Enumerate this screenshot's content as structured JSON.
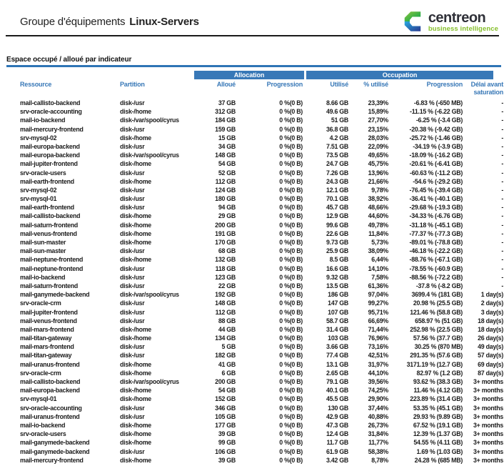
{
  "header": {
    "title_prefix": "Groupe d'équipements",
    "group_name": "Linux-Servers",
    "logo": {
      "brand": "centreon",
      "tagline": "business intelligence"
    }
  },
  "section": {
    "title": "Espace occupé / alloué par indicateur"
  },
  "colors": {
    "accent_blue": "#3878b7",
    "section_rule_blue": "#2e74b5",
    "logo_green": "#86bf2c",
    "logo_dark": "#2f3038",
    "logo_mark_green_light": "#8dc63f",
    "logo_mark_green_dark": "#00a14b",
    "logo_mark_blue_light": "#27aae1",
    "logo_mark_blue_dark": "#2b3990"
  },
  "table": {
    "groups": {
      "allocation": "Allocation",
      "occupation": "Occupation"
    },
    "columns": [
      "Ressource",
      "Partition",
      "Alloué",
      "Progression",
      "Utilisé",
      "% utilisé",
      "Progression",
      "Délai avant saturation"
    ],
    "rows": [
      [
        "mail-callisto-backend",
        "disk-/usr",
        "37 GB",
        "0 %(0 B)",
        "8.66 GB",
        "23,39%",
        "-6.83 % (-650 MB)",
        "-"
      ],
      [
        "srv-oracle-accounting",
        "disk-/home",
        "312 GB",
        "0 %(0 B)",
        "49.6 GB",
        "15,89%",
        "-11.15 % (-6.22 GB)",
        "-"
      ],
      [
        "mail-io-backend",
        "disk-/var/spool/cyrus",
        "184 GB",
        "0 %(0 B)",
        "51 GB",
        "27,70%",
        "-6.25 % (-3.4 GB)",
        "-"
      ],
      [
        "mail-mercury-frontend",
        "disk-/usr",
        "159 GB",
        "0 %(0 B)",
        "36.8 GB",
        "23,15%",
        "-20.38 % (-9.42 GB)",
        "-"
      ],
      [
        "srv-mysql-02",
        "disk-/home",
        "15 GB",
        "0 %(0 B)",
        "4.2 GB",
        "28,03%",
        "-25.72 % (-1.46 GB)",
        "-"
      ],
      [
        "mail-europa-backend",
        "disk-/usr",
        "34 GB",
        "0 %(0 B)",
        "7.51 GB",
        "22,09%",
        "-34.19 % (-3.9 GB)",
        "-"
      ],
      [
        "mail-europa-backend",
        "disk-/var/spool/cyrus",
        "148 GB",
        "0 %(0 B)",
        "73.5 GB",
        "49,65%",
        "-18.09 % (-16.2 GB)",
        "-"
      ],
      [
        "mail-jupiter-frontend",
        "disk-/home",
        "54 GB",
        "0 %(0 B)",
        "24.7 GB",
        "45,75%",
        "-20.61 % (-6.41 GB)",
        "-"
      ],
      [
        "srv-oracle-users",
        "disk-/usr",
        "52 GB",
        "0 %(0 B)",
        "7.26 GB",
        "13,96%",
        "-60.63 % (-11.2 GB)",
        "-"
      ],
      [
        "mail-earth-frontend",
        "disk-/home",
        "112 GB",
        "0 %(0 B)",
        "24.3 GB",
        "21,66%",
        "-54.6 % (-29.2 GB)",
        "-"
      ],
      [
        "srv-mysql-02",
        "disk-/usr",
        "124 GB",
        "0 %(0 B)",
        "12.1 GB",
        "9,78%",
        "-76.45 % (-39.4 GB)",
        "-"
      ],
      [
        "srv-mysql-01",
        "disk-/usr",
        "180 GB",
        "0 %(0 B)",
        "70.1 GB",
        "38,92%",
        "-36.41 % (-40.1 GB)",
        "-"
      ],
      [
        "mail-earth-frontend",
        "disk-/usr",
        "94 GB",
        "0 %(0 B)",
        "45.7 GB",
        "48,66%",
        "-29.68 % (-19.3 GB)",
        "-"
      ],
      [
        "mail-callisto-backend",
        "disk-/home",
        "29 GB",
        "0 %(0 B)",
        "12.9 GB",
        "44,60%",
        "-34.33 % (-6.76 GB)",
        "-"
      ],
      [
        "mail-saturn-frontend",
        "disk-/home",
        "200 GB",
        "0 %(0 B)",
        "99.6 GB",
        "49,78%",
        "-31.18 % (-45.1 GB)",
        "-"
      ],
      [
        "mail-venus-frontend",
        "disk-/home",
        "191 GB",
        "0 %(0 B)",
        "22.6 GB",
        "11,84%",
        "-77.37 % (-77.3 GB)",
        "-"
      ],
      [
        "mail-sun-master",
        "disk-/home",
        "170 GB",
        "0 %(0 B)",
        "9.73 GB",
        "5,73%",
        "-89.01 % (-78.8 GB)",
        "-"
      ],
      [
        "mail-sun-master",
        "disk-/usr",
        "68 GB",
        "0 %(0 B)",
        "25.9 GB",
        "38,09%",
        "-46.18 % (-22.2 GB)",
        "-"
      ],
      [
        "mail-neptune-frontend",
        "disk-/home",
        "132 GB",
        "0 %(0 B)",
        "8.5 GB",
        "6,44%",
        "-88.76 % (-67.1 GB)",
        "-"
      ],
      [
        "mail-neptune-frontend",
        "disk-/usr",
        "118 GB",
        "0 %(0 B)",
        "16.6 GB",
        "14,10%",
        "-78.55 % (-60.9 GB)",
        "-"
      ],
      [
        "mail-io-backend",
        "disk-/usr",
        "123 GB",
        "0 %(0 B)",
        "9.32 GB",
        "7,58%",
        "-88.56 % (-72.2 GB)",
        "-"
      ],
      [
        "mail-saturn-frontend",
        "disk-/usr",
        "22 GB",
        "0 %(0 B)",
        "13.5 GB",
        "61,36%",
        "-37.8 % (-8.2 GB)",
        "-"
      ],
      [
        "mail-ganymede-backend",
        "disk-/var/spool/cyrus",
        "192 GB",
        "0 %(0 B)",
        "186 GB",
        "97,04%",
        "3699.4 % (181 GB)",
        "1 day(s)"
      ],
      [
        "srv-oracle-crm",
        "disk-/usr",
        "148 GB",
        "0 %(0 B)",
        "147 GB",
        "99,27%",
        "20.98 % (25.5 GB)",
        "2 day(s)"
      ],
      [
        "mail-jupiter-frontend",
        "disk-/usr",
        "112 GB",
        "0 %(0 B)",
        "107 GB",
        "95,71%",
        "121.46 % (58.8 GB)",
        "3 day(s)"
      ],
      [
        "mail-venus-frontend",
        "disk-/usr",
        "88 GB",
        "0 %(0 B)",
        "58.7 GB",
        "66,69%",
        "658.97 % (51 GB)",
        "18 day(s)"
      ],
      [
        "mail-mars-frontend",
        "disk-/home",
        "44 GB",
        "0 %(0 B)",
        "31.4 GB",
        "71,44%",
        "252.98 % (22.5 GB)",
        "18 day(s)"
      ],
      [
        "mail-titan-gateway",
        "disk-/home",
        "134 GB",
        "0 %(0 B)",
        "103 GB",
        "76,96%",
        "57.56 % (37.7 GB)",
        "26 day(s)"
      ],
      [
        "mail-mars-frontend",
        "disk-/usr",
        "5 GB",
        "0 %(0 B)",
        "3.66 GB",
        "73,16%",
        "30.25 % (870 MB)",
        "49 day(s)"
      ],
      [
        "mail-titan-gateway",
        "disk-/usr",
        "182 GB",
        "0 %(0 B)",
        "77.4 GB",
        "42,51%",
        "291.35 % (57.6 GB)",
        "57 day(s)"
      ],
      [
        "mail-uranus-frontend",
        "disk-/home",
        "41 GB",
        "0 %(0 B)",
        "13.1 GB",
        "31,97%",
        "3171.19 % (12.7 GB)",
        "69 day(s)"
      ],
      [
        "srv-oracle-crm",
        "disk-/home",
        "6 GB",
        "0 %(0 B)",
        "2.65 GB",
        "44,10%",
        "82.97 % (1.2 GB)",
        "87 day(s)"
      ],
      [
        "mail-callisto-backend",
        "disk-/var/spool/cyrus",
        "200 GB",
        "0 %(0 B)",
        "79.1 GB",
        "39,56%",
        "93.62 % (38.3 GB)",
        "3+ months"
      ],
      [
        "mail-europa-backend",
        "disk-/home",
        "54 GB",
        "0 %(0 B)",
        "40.1 GB",
        "74,25%",
        "11.46 % (4.12 GB)",
        "3+ months"
      ],
      [
        "srv-mysql-01",
        "disk-/home",
        "152 GB",
        "0 %(0 B)",
        "45.5 GB",
        "29,90%",
        "223.89 % (31.4 GB)",
        "3+ months"
      ],
      [
        "srv-oracle-accounting",
        "disk-/usr",
        "346 GB",
        "0 %(0 B)",
        "130 GB",
        "37,44%",
        "53.35 % (45.1 GB)",
        "3+ months"
      ],
      [
        "mail-uranus-frontend",
        "disk-/usr",
        "105 GB",
        "0 %(0 B)",
        "42.9 GB",
        "40,88%",
        "29.93 % (9.89 GB)",
        "3+ months"
      ],
      [
        "mail-io-backend",
        "disk-/home",
        "177 GB",
        "0 %(0 B)",
        "47.3 GB",
        "26,73%",
        "67.52 % (19.1 GB)",
        "3+ months"
      ],
      [
        "srv-oracle-users",
        "disk-/home",
        "39 GB",
        "0 %(0 B)",
        "12.4 GB",
        "31,84%",
        "12.39 % (1.37 GB)",
        "3+ months"
      ],
      [
        "mail-ganymede-backend",
        "disk-/home",
        "99 GB",
        "0 %(0 B)",
        "11.7 GB",
        "11,77%",
        "54.55 % (4.11 GB)",
        "3+ months"
      ],
      [
        "mail-ganymede-backend",
        "disk-/usr",
        "106 GB",
        "0 %(0 B)",
        "61.9 GB",
        "58,38%",
        "1.69 % (1.03 GB)",
        "3+ months"
      ],
      [
        "mail-mercury-frontend",
        "disk-/home",
        "39 GB",
        "0 %(0 B)",
        "3.42 GB",
        "8,78%",
        "24.28 % (685 MB)",
        "3+ months"
      ]
    ]
  }
}
